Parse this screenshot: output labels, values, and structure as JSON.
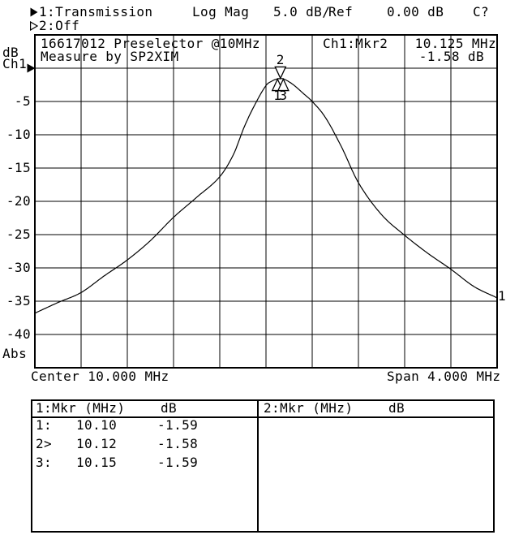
{
  "colors": {
    "foreground": "#000000",
    "background": "#ffffff"
  },
  "header": {
    "trace1": {
      "label": "1:Transmission",
      "format": "Log Mag",
      "scale": "5.0 dB/",
      "ref_label": "Ref",
      "ref_value": "0.00 dB",
      "cal_status": "C?"
    },
    "trace2": {
      "label": "2:Off"
    }
  },
  "graph": {
    "title_line1": "16617012 Preselector @10MHz",
    "title_line2": "Measure by SP2XIM",
    "marker_readout": {
      "channel": "Ch1:Mkr2",
      "freq": "10.125 MHz",
      "level": "-1.58 dB"
    },
    "y_axis": {
      "unit": "dB",
      "channel": "Ch1",
      "mode": "Abs",
      "tick_labels": [
        "-5",
        "-10",
        "-15",
        "-20",
        "-25",
        "-30",
        "-35",
        "-40"
      ]
    },
    "x_axis": {
      "center": "Center 10.000 MHz",
      "span": "Span 4.000 MHz"
    },
    "trace_end_label": "1"
  },
  "chart_data": {
    "type": "line",
    "title": "16617012 Preselector @10MHz",
    "x_center_mhz": 10.0,
    "x_span_mhz": 4.0,
    "x_range": [
      8.0,
      12.0
    ],
    "ref_db": 0.0,
    "db_per_div": 5.0,
    "y_top_db": 5.0,
    "y_bottom_db": -45.0,
    "grid_divisions_x": 10,
    "grid_divisions_y": 10,
    "grid": true,
    "series": [
      {
        "name": "Ch1 Transmission Log Mag",
        "points": [
          [
            8.0,
            -36.8
          ],
          [
            8.2,
            -35.2
          ],
          [
            8.4,
            -33.7
          ],
          [
            8.6,
            -31.2
          ],
          [
            8.8,
            -28.8
          ],
          [
            9.0,
            -25.9
          ],
          [
            9.2,
            -22.4
          ],
          [
            9.4,
            -19.4
          ],
          [
            9.6,
            -16.3
          ],
          [
            9.72,
            -12.9
          ],
          [
            9.81,
            -8.9
          ],
          [
            9.9,
            -5.6
          ],
          [
            10.0,
            -2.6
          ],
          [
            10.05,
            -1.95
          ],
          [
            10.1,
            -1.59
          ],
          [
            10.125,
            -1.58
          ],
          [
            10.15,
            -1.59
          ],
          [
            10.23,
            -2.4
          ],
          [
            10.33,
            -3.9
          ],
          [
            10.4,
            -5.0
          ],
          [
            10.51,
            -7.3
          ],
          [
            10.65,
            -11.7
          ],
          [
            10.8,
            -17.2
          ],
          [
            11.0,
            -22.0
          ],
          [
            11.2,
            -25.1
          ],
          [
            11.4,
            -27.8
          ],
          [
            11.6,
            -30.2
          ],
          [
            11.8,
            -32.8
          ],
          [
            12.0,
            -34.5
          ]
        ]
      }
    ],
    "markers": [
      {
        "n": "1",
        "mhz": 10.1,
        "db": -1.59,
        "shape": "up",
        "label_pos": "below"
      },
      {
        "n": "2",
        "mhz": 10.125,
        "db": -1.58,
        "shape": "down",
        "label_pos": "above",
        "active": true
      },
      {
        "n": "3",
        "mhz": 10.15,
        "db": -1.59,
        "shape": "up",
        "label_pos": "below"
      }
    ]
  },
  "marker_table": {
    "left": {
      "header_title": "1:Mkr (MHz)",
      "header_unit": "dB",
      "rows": [
        {
          "label": "1:",
          "freq": "10.10",
          "db": "-1.59"
        },
        {
          "label": "2>",
          "freq": "10.12",
          "db": "-1.58"
        },
        {
          "label": "3:",
          "freq": "10.15",
          "db": "-1.59"
        }
      ]
    },
    "right": {
      "header_title": "2:Mkr (MHz)",
      "header_unit": "dB",
      "rows": []
    }
  }
}
